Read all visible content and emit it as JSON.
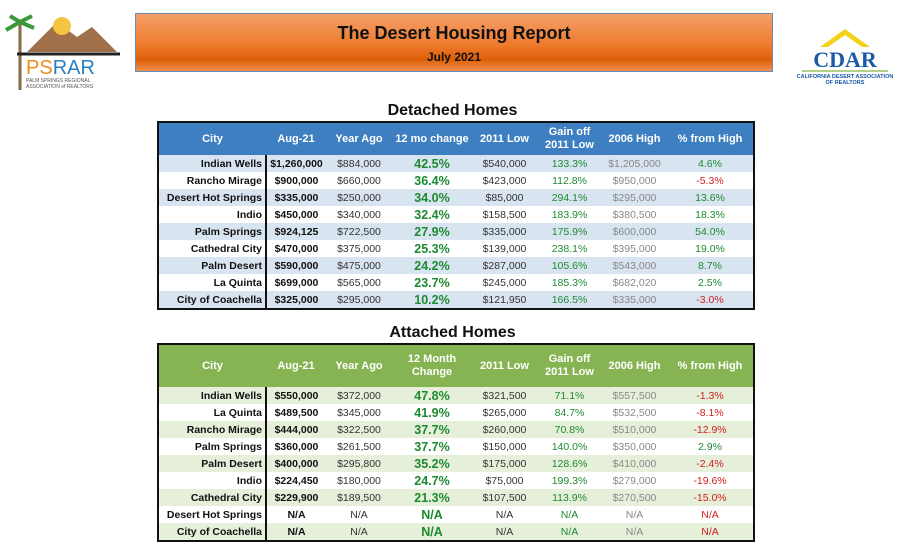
{
  "header": {
    "title": "The Desert Housing Report",
    "subtitle": "July 2021"
  },
  "logos": {
    "left": {
      "text": "PSRAR",
      "caption": "PALM SPRINGS REGIONAL ASSOCIATION of REALTORS"
    },
    "right": {
      "text": "CDAR",
      "caption": "CALIFORNIA DESERT ASSOCIATION OF REALTORS"
    }
  },
  "colors": {
    "banner": "#ee7a2c",
    "detached_header": "#3d7fc1",
    "attached_header": "#86b453",
    "positive": "#1d8a30",
    "negative": "#d02020"
  },
  "detached": {
    "title": "Detached Homes",
    "headers": [
      "City",
      "Aug-21",
      "Year Ago",
      "12 mo change",
      "2011 Low",
      "Gain off 2011 Low",
      "2006 High",
      "% from High"
    ],
    "rows": [
      [
        "Indian Wells",
        "$1,260,000",
        "$884,000",
        "42.5%",
        "$540,000",
        "133.3%",
        "$1,205,000",
        "4.6%"
      ],
      [
        "Rancho Mirage",
        "$900,000",
        "$660,000",
        "36.4%",
        "$423,000",
        "112.8%",
        "$950,000",
        "-5.3%"
      ],
      [
        "Desert Hot Springs",
        "$335,000",
        "$250,000",
        "34.0%",
        "$85,000",
        "294.1%",
        "$295,000",
        "13.6%"
      ],
      [
        "Indio",
        "$450,000",
        "$340,000",
        "32.4%",
        "$158,500",
        "183.9%",
        "$380,500",
        "18.3%"
      ],
      [
        "Palm Springs",
        "$924,125",
        "$722,500",
        "27.9%",
        "$335,000",
        "175.9%",
        "$600,000",
        "54.0%"
      ],
      [
        "Cathedral City",
        "$470,000",
        "$375,000",
        "25.3%",
        "$139,000",
        "238.1%",
        "$395,000",
        "19.0%"
      ],
      [
        "Palm Desert",
        "$590,000",
        "$475,000",
        "24.2%",
        "$287,000",
        "105.6%",
        "$543,000",
        "8.7%"
      ],
      [
        "La Quinta",
        "$699,000",
        "$565,000",
        "23.7%",
        "$245,000",
        "185.3%",
        "$682,020",
        "2.5%"
      ],
      [
        "City of Coachella",
        "$325,000",
        "$295,000",
        "10.2%",
        "$121,950",
        "166.5%",
        "$335,000",
        "-3.0%"
      ]
    ]
  },
  "attached": {
    "title": "Attached Homes",
    "headers": [
      "City",
      "Aug-21",
      "Year Ago",
      "12 Month Change",
      "2011 Low",
      "Gain off 2011 Low",
      "2006 High",
      "% from High"
    ],
    "rows": [
      [
        "Indian Wells",
        "$550,000",
        "$372,000",
        "47.8%",
        "$321,500",
        "71.1%",
        "$557,500",
        "-1.3%"
      ],
      [
        "La Quinta",
        "$489,500",
        "$345,000",
        "41.9%",
        "$265,000",
        "84.7%",
        "$532,500",
        "-8.1%"
      ],
      [
        "Rancho Mirage",
        "$444,000",
        "$322,500",
        "37.7%",
        "$260,000",
        "70.8%",
        "$510,000",
        "-12.9%"
      ],
      [
        "Palm Springs",
        "$360,000",
        "$261,500",
        "37.7%",
        "$150,000",
        "140.0%",
        "$350,000",
        "2.9%"
      ],
      [
        "Palm Desert",
        "$400,000",
        "$295,800",
        "35.2%",
        "$175,000",
        "128.6%",
        "$410,000",
        "-2.4%"
      ],
      [
        "Indio",
        "$224,450",
        "$180,000",
        "24.7%",
        "$75,000",
        "199.3%",
        "$279,000",
        "-19.6%"
      ],
      [
        "Cathedral City",
        "$229,900",
        "$189,500",
        "21.3%",
        "$107,500",
        "113.9%",
        "$270,500",
        "-15.0%"
      ],
      [
        "Desert Hot Springs",
        "N/A",
        "N/A",
        "N/A",
        "N/A",
        "N/A",
        "N/A",
        "N/A"
      ],
      [
        "City of Coachella",
        "N/A",
        "N/A",
        "N/A",
        "N/A",
        "N/A",
        "N/A",
        "N/A"
      ]
    ]
  }
}
